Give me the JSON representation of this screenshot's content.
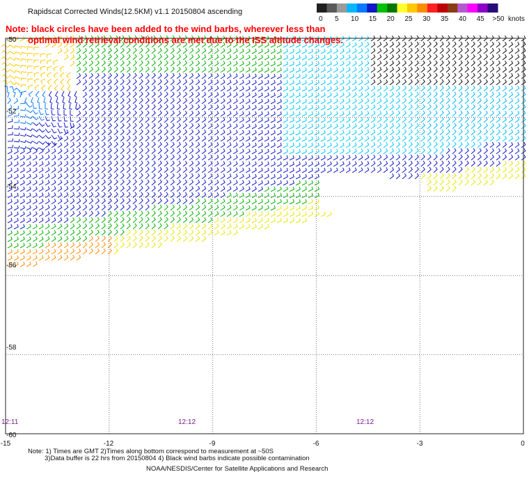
{
  "header": {
    "title": "Rapidscat Corrected Winds(12.5KM) v1.1 20150804 ascending",
    "note_line1": "Note: black circles have been added to the wind barbs, wherever less than",
    "note_line2": "optimal wind retrieval conditions are met due to the ISS altitude changes."
  },
  "legend": {
    "unit": "knots",
    "labels": [
      "0",
      "5",
      "10",
      "15",
      "20",
      "25",
      "30",
      "35",
      "40",
      "45",
      ">50"
    ],
    "colors": [
      "#202020",
      "#5a5a5a",
      "#9a9a9a",
      "#00b8ff",
      "#0a78ff",
      "#1018c8",
      "#00c000",
      "#007800",
      "#ffff30",
      "#ffc800",
      "#ff8c00",
      "#ff2020",
      "#c00000",
      "#8c3c14",
      "#b45ad0",
      "#ff00ff",
      "#8c00c8",
      "#2a0a78"
    ]
  },
  "footer": {
    "note_line1": "Note: 1) Times are GMT 2)Times along bottom correspond to measurement at ~50S",
    "note_line2": "3)Data buffer is 22 hrs from 20150804 4) Black wind barbs indicate possible contamination",
    "credit": "NOAA/NESDIS/Center for Satellite Applications and Research"
  },
  "chart_data": {
    "type": "wind-barb map",
    "x_ticks": [
      "-15",
      "-12",
      "-9",
      "-6",
      "-3",
      "0"
    ],
    "y_ticks": [
      "-50",
      "-52",
      "-54",
      "-56",
      "-58",
      "-60"
    ],
    "xlim": [
      -15,
      0
    ],
    "ylim": [
      -60,
      -50
    ],
    "time_labels": [
      {
        "x": -15,
        "label": "12:11"
      },
      {
        "x": -10,
        "label": "12:12"
      },
      {
        "x": -5,
        "label": "12:12"
      }
    ],
    "swath_boundary": {
      "top_lat": -50,
      "bottom_edge": [
        [
          -15,
          -55.9
        ],
        [
          -12,
          -55.5
        ],
        [
          -9,
          -55.1
        ],
        [
          -6,
          -54.6
        ],
        [
          -3,
          -54.0
        ],
        [
          0,
          -53.6
        ]
      ]
    },
    "wind_speed_zones_knots": [
      {
        "region": "northwest corner",
        "speed": 24
      },
      {
        "region": "west vortex near -14.5,-51.5",
        "speed": 17
      },
      {
        "region": "central band",
        "speed": 12
      },
      {
        "region": "east-central",
        "speed": 8
      },
      {
        "region": "northeast corner",
        "speed": 3
      },
      {
        "region": "southern swath edge",
        "speed": 22
      }
    ]
  }
}
